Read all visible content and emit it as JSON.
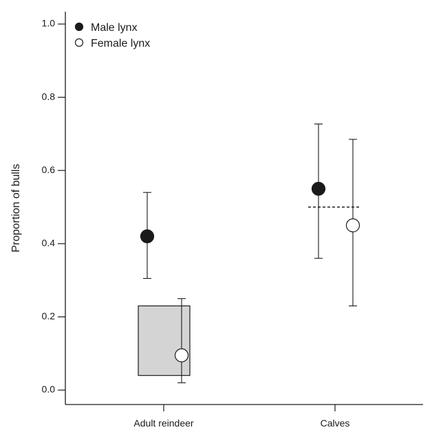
{
  "chart_data": {
    "type": "scatter",
    "title": "",
    "xlabel": "",
    "ylabel": "Proportion of bulls",
    "ylim": [
      0,
      1.0
    ],
    "yticks": [
      "0.0",
      "0.2",
      "0.4",
      "0.6",
      "0.8",
      "1.0"
    ],
    "categories": [
      "Adult reindeer",
      "Calves"
    ],
    "legend_position": "top-left",
    "series": [
      {
        "name": "Male lynx",
        "marker": "filled-circle",
        "color": "#1a1a1a",
        "points": [
          {
            "category": "Adult reindeer",
            "y": 0.42,
            "lower": 0.305,
            "upper": 0.54
          },
          {
            "category": "Calves",
            "y": 0.55,
            "lower": 0.36,
            "upper": 0.727
          }
        ]
      },
      {
        "name": "Female lynx",
        "marker": "open-circle",
        "color": "#ffffff",
        "points": [
          {
            "category": "Adult reindeer",
            "y": 0.095,
            "lower": 0.02,
            "upper": 0.25
          },
          {
            "category": "Calves",
            "y": 0.45,
            "lower": 0.23,
            "upper": 0.685
          }
        ]
      }
    ],
    "shaded_range": {
      "category": "Adult reindeer",
      "lower": 0.04,
      "upper": 0.23,
      "color": "#d4d4d4"
    },
    "reference_line": {
      "category": "Calves",
      "y": 0.5,
      "style": "dashed"
    }
  }
}
